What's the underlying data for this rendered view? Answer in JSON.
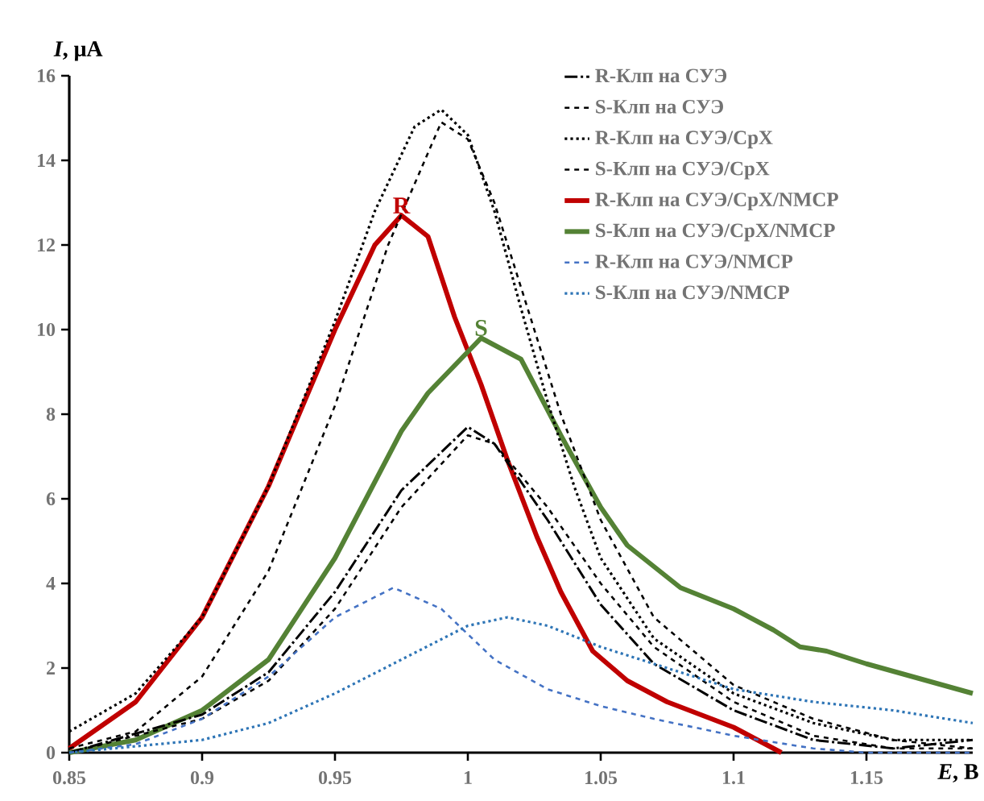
{
  "chart_data": {
    "type": "line",
    "xlabel": "*E*, В",
    "ylabel": "*I*, μA",
    "xlim": [
      0.85,
      1.19
    ],
    "xticks": [
      0.85,
      0.9,
      0.95,
      1,
      1.05,
      1.1,
      1.15
    ],
    "ylim": [
      0,
      16
    ],
    "yticks": [
      0,
      2,
      4,
      6,
      8,
      10,
      12,
      14,
      16
    ],
    "grid": false,
    "legend": "top right",
    "marker": "none",
    "annotations": [
      {
        "text": "R",
        "x": 0.975,
        "y": 12.7
      },
      {
        "text": "S",
        "x": 1.005,
        "y": 9.8
      }
    ],
    "series": [
      {
        "name": "R-Клп на СУЭ",
        "color": "#000000",
        "line_style": "dashdot",
        "x": [
          0.85,
          0.9,
          0.925,
          0.95,
          0.975,
          1.0,
          1.01,
          1.03,
          1.05,
          1.07,
          1.1,
          1.13,
          1.16,
          1.19
        ],
        "values": [
          0,
          0.9,
          1.9,
          3.8,
          6.2,
          7.7,
          7.3,
          5.5,
          3.5,
          2.1,
          1.0,
          0.3,
          0.1,
          0.3
        ]
      },
      {
        "name": "S-Клп на СУЭ",
        "color": "#000000",
        "line_style": "dashed",
        "x": [
          0.85,
          0.9,
          0.925,
          0.95,
          0.975,
          1.0,
          1.01,
          1.03,
          1.05,
          1.07,
          1.1,
          1.13,
          1.16,
          1.19
        ],
        "values": [
          0,
          0.8,
          1.7,
          3.4,
          5.8,
          7.5,
          7.3,
          5.8,
          4.0,
          2.5,
          1.2,
          0.4,
          0.1,
          0.1
        ]
      },
      {
        "name": "R-Клп на СУЭ/CpX",
        "color": "#000000",
        "line_style": "dotted",
        "x": [
          0.85,
          0.875,
          0.9,
          0.925,
          0.95,
          0.965,
          0.98,
          0.99,
          1.0,
          1.01,
          1.02,
          1.03,
          1.04,
          1.05,
          1.07,
          1.1,
          1.13,
          1.16,
          1.19
        ],
        "values": [
          0.5,
          1.4,
          3.2,
          6.3,
          10.2,
          12.8,
          14.8,
          15.2,
          14.6,
          12.8,
          10.5,
          8.3,
          6.3,
          4.6,
          2.7,
          1.4,
          0.7,
          0.3,
          0.3
        ]
      },
      {
        "name": "S-Клп на СУЭ/CpX",
        "color": "#000000",
        "line_style": "dashed",
        "x": [
          0.85,
          0.875,
          0.9,
          0.925,
          0.95,
          0.97,
          0.99,
          1.0,
          1.01,
          1.02,
          1.035,
          1.05,
          1.07,
          1.1,
          1.13,
          1.16,
          1.19
        ],
        "values": [
          0.1,
          0.5,
          1.8,
          4.3,
          8.2,
          12.0,
          14.9,
          14.5,
          13.0,
          11.0,
          8.0,
          5.5,
          3.2,
          1.6,
          0.8,
          0.3,
          0.1
        ]
      },
      {
        "name": "R-Клп на СУЭ/CpX/NMCP",
        "color": "#c00000",
        "line_style": "solid",
        "x": [
          0.85,
          0.875,
          0.9,
          0.925,
          0.95,
          0.965,
          0.975,
          0.985,
          0.995,
          1.005,
          1.015,
          1.026,
          1.035,
          1.047,
          1.06,
          1.075,
          1.1,
          1.118
        ],
        "values": [
          0.1,
          1.2,
          3.2,
          6.3,
          10.0,
          12.0,
          12.7,
          12.2,
          10.3,
          8.7,
          6.9,
          5.1,
          3.8,
          2.4,
          1.7,
          1.2,
          0.6,
          0
        ]
      },
      {
        "name": "S-Клп на СУЭ/CpX/NMCP",
        "color": "#548235",
        "line_style": "solid",
        "x": [
          0.85,
          0.875,
          0.9,
          0.925,
          0.95,
          0.975,
          0.985,
          1.005,
          1.02,
          1.035,
          1.05,
          1.06,
          1.08,
          1.1,
          1.115,
          1.125,
          1.135,
          1.15,
          1.19
        ],
        "values": [
          0,
          0.3,
          1.0,
          2.2,
          4.6,
          7.6,
          8.5,
          9.8,
          9.3,
          7.5,
          5.8,
          4.9,
          3.9,
          3.4,
          2.9,
          2.5,
          2.4,
          2.1,
          1.4
        ]
      },
      {
        "name": "R-Клп на СУЭ/NMCP",
        "color": "#4472c4",
        "line_style": "dashed",
        "x": [
          0.85,
          0.875,
          0.9,
          0.925,
          0.95,
          0.972,
          0.99,
          1.01,
          1.03,
          1.05,
          1.07,
          1.1,
          1.13,
          1.15,
          1.19
        ],
        "values": [
          0,
          0.2,
          0.8,
          1.8,
          3.2,
          3.9,
          3.4,
          2.2,
          1.5,
          1.1,
          0.8,
          0.4,
          0.1,
          0,
          0
        ]
      },
      {
        "name": "S-Клп на СУЭ/NMCP",
        "color": "#2e75b6",
        "line_style": "dotted",
        "x": [
          0.85,
          0.9,
          0.925,
          0.95,
          0.975,
          1.0,
          1.015,
          1.03,
          1.05,
          1.075,
          1.1,
          1.13,
          1.16,
          1.19
        ],
        "values": [
          0,
          0.3,
          0.7,
          1.4,
          2.2,
          3.0,
          3.2,
          3.0,
          2.5,
          2.0,
          1.5,
          1.2,
          1.0,
          0.7
        ]
      }
    ]
  }
}
